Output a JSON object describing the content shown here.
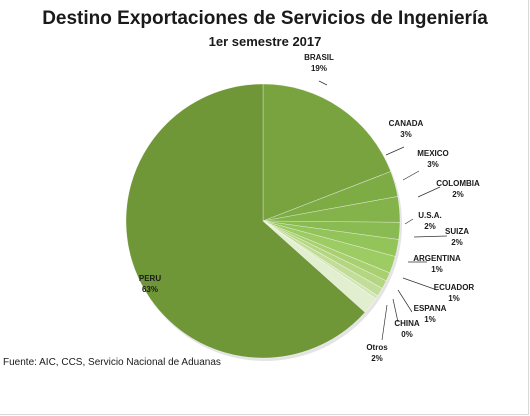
{
  "chart_data": {
    "type": "pie",
    "title": "Destino Exportaciones de Servicios de Ingeniería",
    "subtitle": "1er semestre 2017",
    "source": "Fuente: AIC, CCS, Servicio Nacional de Aduanas",
    "slices": [
      {
        "label": "BRASIL",
        "value": 19,
        "value_text": "19%",
        "color": "#78a33e"
      },
      {
        "label": "CANADA",
        "value": 3,
        "value_text": "3%",
        "color": "#7dab44"
      },
      {
        "label": "MEXICO",
        "value": 3,
        "value_text": "3%",
        "color": "#83b34a"
      },
      {
        "label": "COLOMBIA",
        "value": 2,
        "value_text": "2%",
        "color": "#8abb52"
      },
      {
        "label": "U.S.A.",
        "value": 2,
        "value_text": "2%",
        "color": "#93c45a"
      },
      {
        "label": "SUIZA",
        "value": 2,
        "value_text": "2%",
        "color": "#9dcb64"
      },
      {
        "label": "ARGENTINA",
        "value": 1,
        "value_text": "1%",
        "color": "#a8d070"
      },
      {
        "label": "ECUADOR",
        "value": 1,
        "value_text": "1%",
        "color": "#b4d680"
      },
      {
        "label": "ESPANA",
        "value": 1,
        "value_text": "1%",
        "color": "#c2dd98"
      },
      {
        "label": "CHINA",
        "value": 0,
        "value_text": "0%",
        "color": "#d2e6b4"
      },
      {
        "label": "Otros",
        "value": 2,
        "value_text": "2%",
        "color": "#e2eed0"
      },
      {
        "label": "PERU",
        "value": 63,
        "value_text": "63%",
        "color": "#6f9637"
      }
    ]
  }
}
